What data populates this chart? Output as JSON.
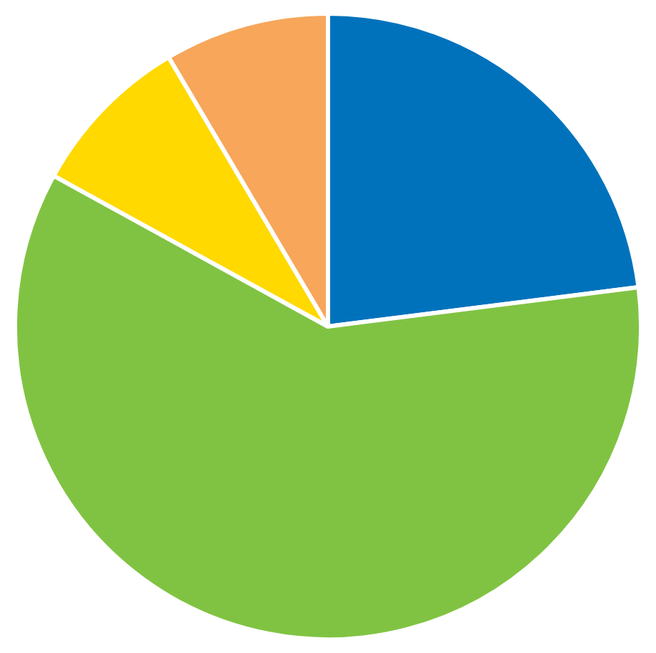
{
  "chart_data": {
    "type": "pie",
    "categories": [
      null,
      null,
      null,
      null
    ],
    "values": [
      23,
      60,
      8.5,
      8.5
    ],
    "colors": [
      "#0072bc",
      "#80c342",
      "#ffd900",
      "#f7a65a"
    ]
  }
}
